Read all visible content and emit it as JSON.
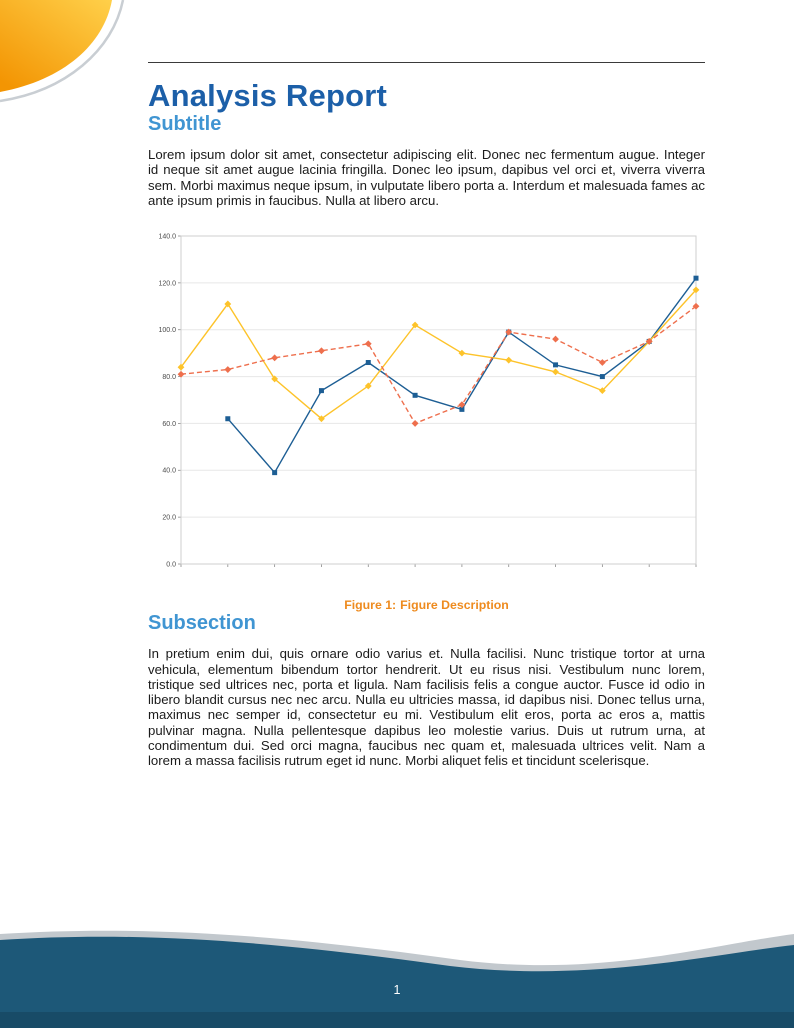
{
  "page": {
    "number": "1"
  },
  "header": {
    "title": "Analysis Report",
    "subtitle": "Subtitle"
  },
  "paragraphs": {
    "intro": "Lorem ipsum dolor sit amet, consectetur adipiscing elit. Donec nec fermentum augue. Integer id neque sit amet augue lacinia fringilla. Donec leo ipsum, dapibus vel orci et, viverra viverra sem. Morbi maximus neque ipsum, in vulputate libero porta a. Interdum et malesuada fames ac ante ipsum primis in faucibus. Nulla at libero arcu.",
    "subsection_body": "In pretium enim dui, quis ornare odio varius et. Nulla facilisi. Nunc tristique tortor at urna vehicula, elementum bibendum tortor hendrerit. Ut eu risus nisi. Vestibulum nunc lorem, tristique sed ultrices nec, porta et ligula. Nam facilisis felis a congue auctor. Fusce id odio in libero blandit cursus nec nec arcu. Nulla eu ultricies massa, id dapibus nisi. Donec tellus urna, maximus nec semper id, consectetur eu mi. Vestibulum elit eros, porta ac eros a, mattis pulvinar magna. Nulla pellentesque dapibus leo molestie varius. Duis ut rutrum urna, at condimentum dui. Sed orci magna, faucibus nec quam et, malesuada ultrices velit. Nam a lorem a massa facilisis rutrum eget id nunc. Morbi aliquet felis et tincidunt scelerisque."
  },
  "figure": {
    "caption_label": "Figure 1:",
    "caption_text": "Figure Description"
  },
  "subsection": {
    "title": "Subsection"
  },
  "colors": {
    "title_blue": "#1c5fa8",
    "heading_blue": "#4095d2",
    "caption_orange": "#ee8b1f",
    "footer_blue": "#1d5878",
    "corner_orange_start": "#ffd04a",
    "corner_orange_end": "#f39503",
    "chart_blue": "#1d5e94",
    "chart_yellow": "#fdc32a",
    "chart_orange": "#ee6f4d"
  },
  "chart_data": {
    "type": "line",
    "title": "",
    "xlabel": "",
    "ylabel": "",
    "x": [
      1,
      2,
      3,
      4,
      5,
      6,
      7,
      8,
      9,
      10,
      11,
      12
    ],
    "series": [
      {
        "name": "blue",
        "color": "#1d5e94",
        "line_style": "solid",
        "marker": "square",
        "values": [
          null,
          62,
          39,
          74,
          86,
          72,
          66,
          99,
          85,
          80,
          95,
          122
        ]
      },
      {
        "name": "yellow",
        "color": "#fdc32a",
        "line_style": "solid",
        "marker": "diamond",
        "values": [
          84,
          111,
          79,
          62,
          76,
          102,
          90,
          87,
          82,
          74,
          95,
          117
        ]
      },
      {
        "name": "orange",
        "color": "#ee6f4d",
        "line_style": "dashed",
        "marker": "diamond",
        "values": [
          81,
          83,
          88,
          91,
          94,
          60,
          68,
          99,
          96,
          86,
          95,
          110
        ]
      }
    ],
    "ylim": [
      0,
      140
    ],
    "ytick_step": 20,
    "ytick_labels": [
      "0.0",
      "20.0",
      "40.0",
      "60.0",
      "80.0",
      "100.0",
      "120.0",
      "140.0"
    ],
    "grid": "horizontal",
    "legend": "none"
  }
}
